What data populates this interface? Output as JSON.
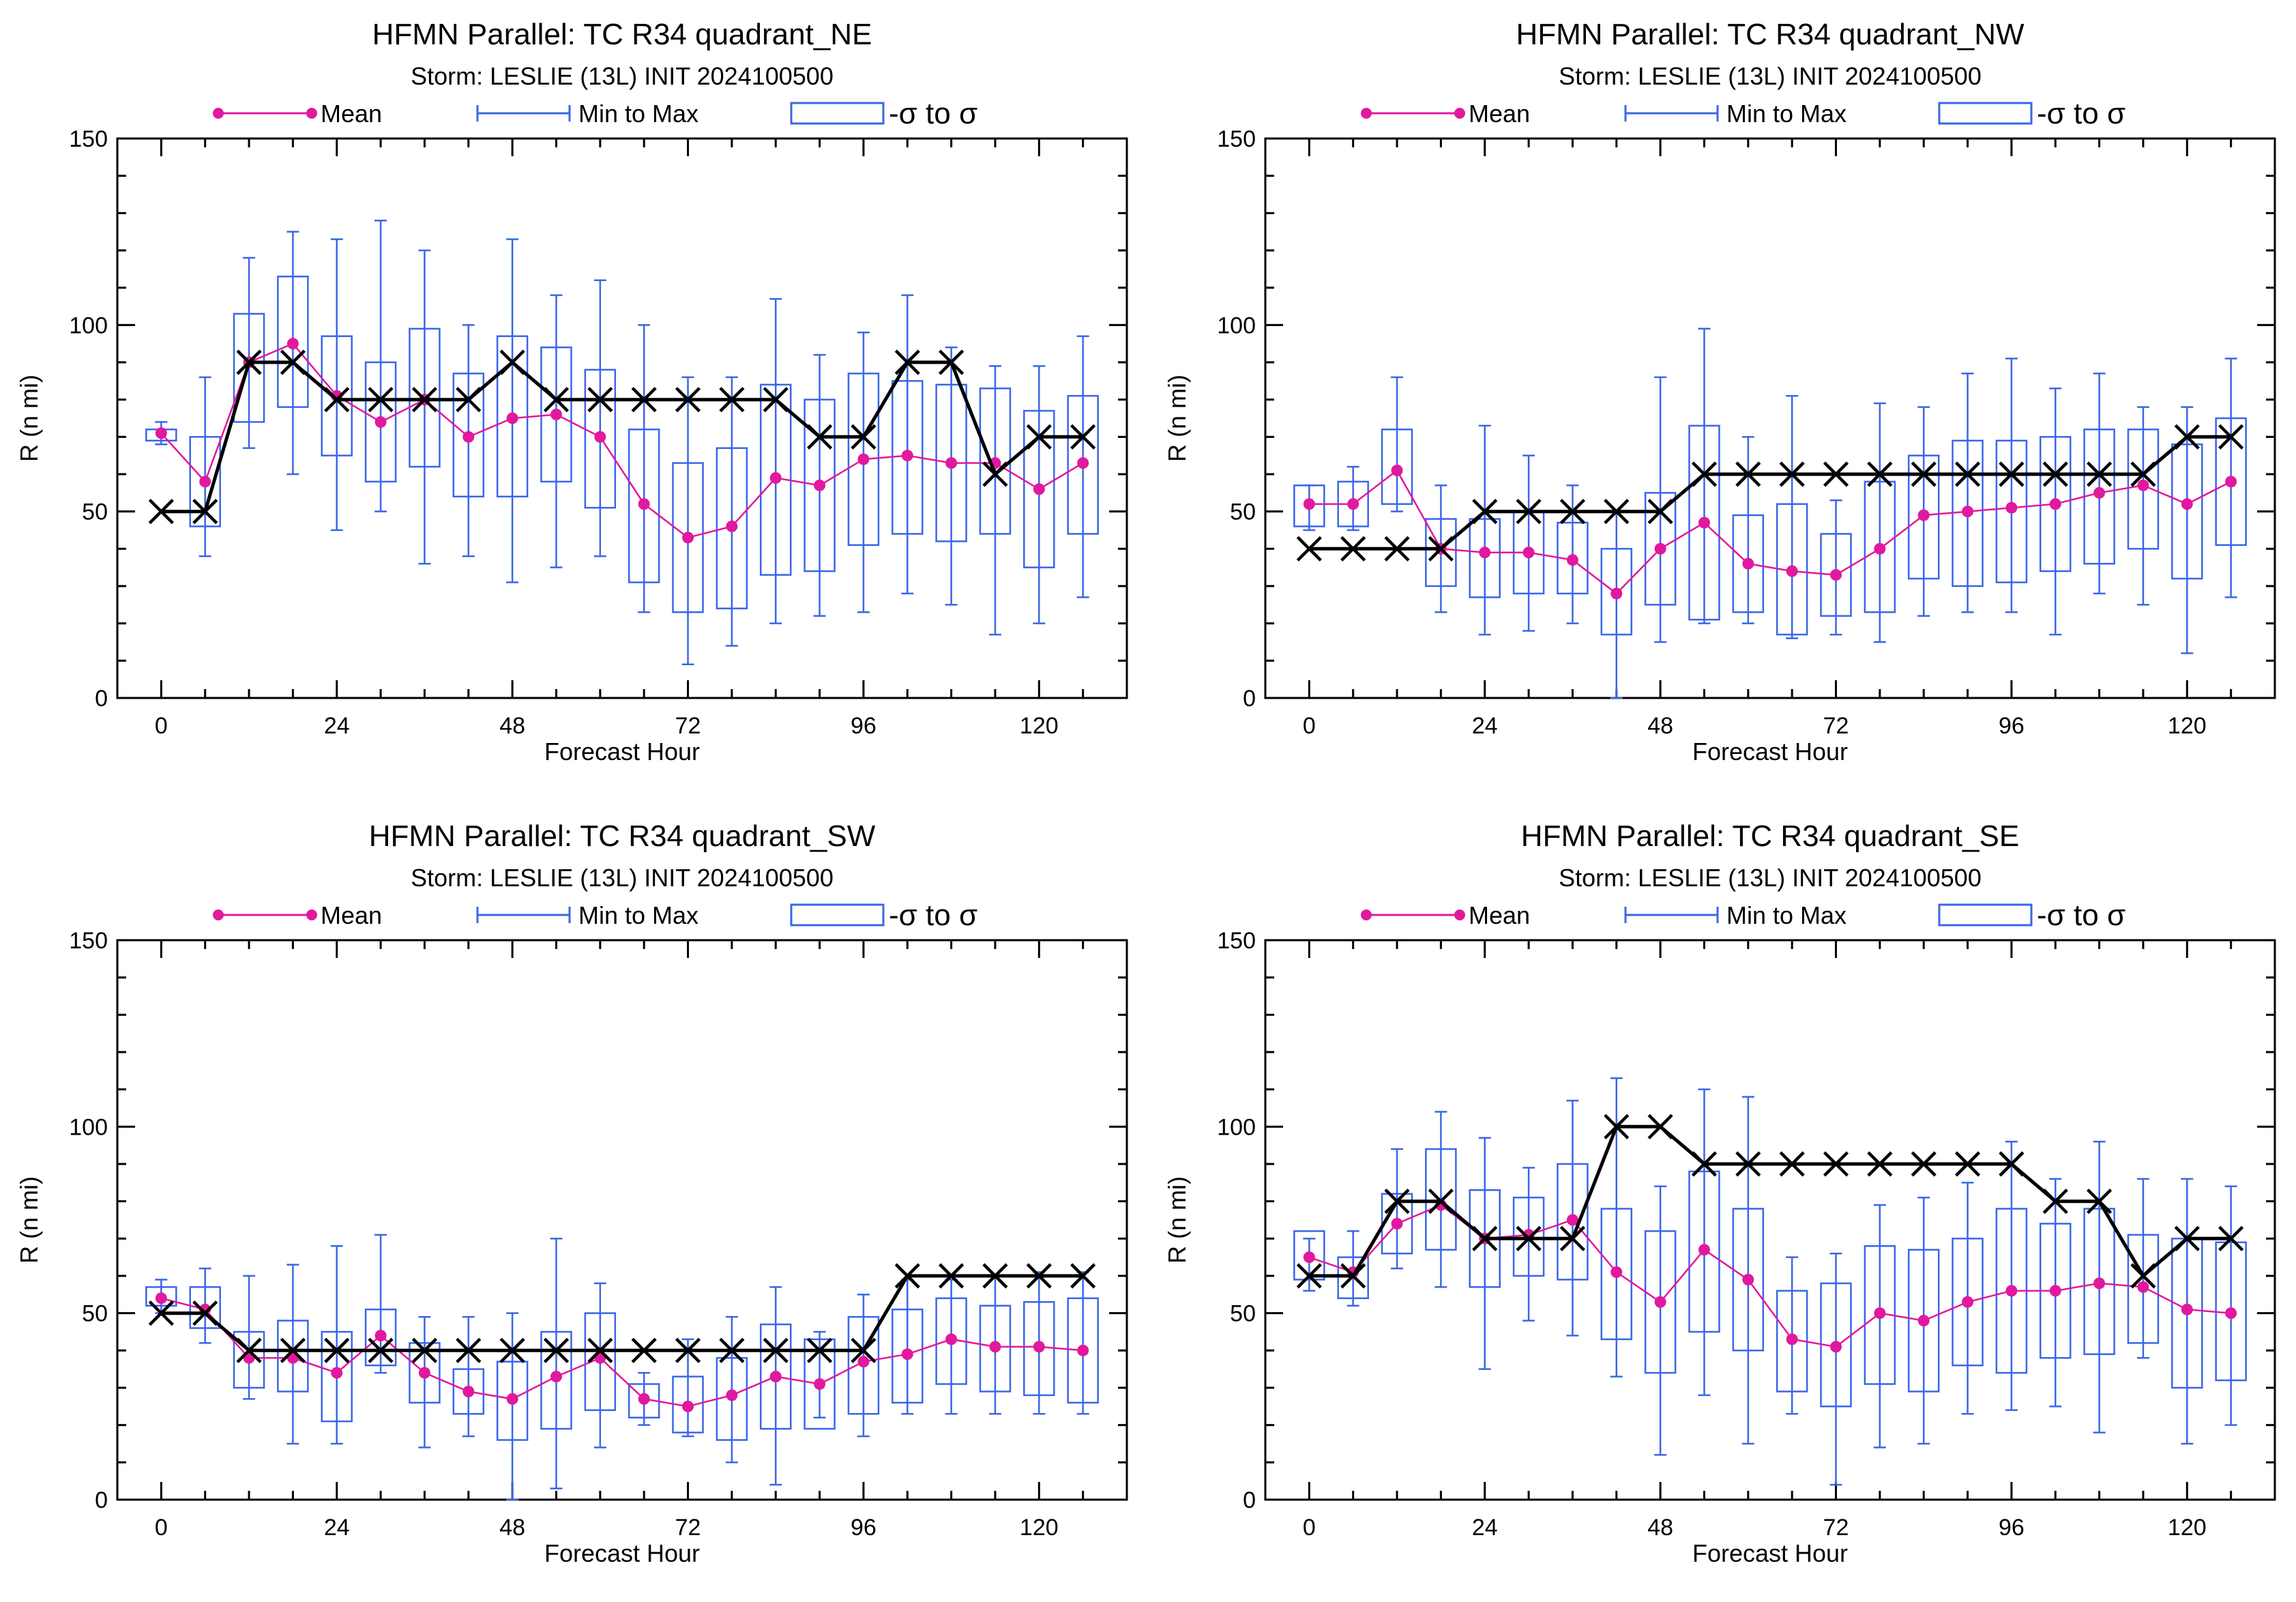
{
  "figure": {
    "legend": {
      "mean_label": "Mean",
      "minmax_label": "Min to Max",
      "sigma_label": "-σ to σ"
    },
    "colors": {
      "mean": "#e0199e",
      "minmax": "#3a66e8",
      "box": "#3a66e8",
      "best_track": "#000000"
    }
  },
  "chart_data": [
    {
      "type": "box",
      "title": "HFMN Parallel: TC  R34 quadrant_NE",
      "subtitle": "Storm: LESLIE (13L) INIT 2024100500",
      "xlabel": "Forecast Hour",
      "ylabel": "R (n mi)",
      "xlim": [
        -6,
        132
      ],
      "ylim": [
        0,
        150
      ],
      "xticks": [
        0,
        24,
        48,
        72,
        96,
        120
      ],
      "yticks": [
        0,
        50,
        100,
        150
      ],
      "x": [
        0,
        6,
        12,
        18,
        24,
        30,
        36,
        42,
        48,
        54,
        60,
        66,
        72,
        78,
        84,
        90,
        96,
        102,
        108,
        114,
        120,
        126
      ],
      "mean": [
        71,
        58,
        90,
        95,
        81,
        74,
        80,
        70,
        75,
        76,
        70,
        52,
        43,
        46,
        59,
        57,
        64,
        65,
        63,
        63,
        56,
        63
      ],
      "min": [
        68,
        38,
        67,
        60,
        45,
        50,
        36,
        38,
        31,
        35,
        38,
        23,
        9,
        14,
        20,
        22,
        23,
        28,
        25,
        17,
        20,
        27
      ],
      "max": [
        74,
        86,
        118,
        125,
        123,
        128,
        120,
        100,
        123,
        108,
        112,
        100,
        86,
        86,
        107,
        92,
        98,
        108,
        94,
        89,
        89,
        97
      ],
      "box_low": [
        69,
        46,
        74,
        78,
        65,
        58,
        62,
        54,
        54,
        58,
        51,
        31,
        23,
        24,
        33,
        34,
        41,
        44,
        42,
        44,
        35,
        44
      ],
      "box_high": [
        72,
        70,
        103,
        113,
        97,
        90,
        99,
        87,
        97,
        94,
        88,
        72,
        63,
        67,
        84,
        80,
        87,
        85,
        84,
        83,
        77,
        81
      ],
      "best_track": [
        50,
        50,
        90,
        90,
        80,
        80,
        80,
        80,
        90,
        80,
        80,
        80,
        80,
        80,
        80,
        70,
        70,
        90,
        90,
        60,
        70,
        70
      ]
    },
    {
      "type": "box",
      "title": "HFMN Parallel: TC  R34 quadrant_NW",
      "subtitle": "Storm: LESLIE (13L) INIT 2024100500",
      "xlabel": "Forecast Hour",
      "ylabel": "R (n mi)",
      "xlim": [
        -6,
        132
      ],
      "ylim": [
        0,
        150
      ],
      "xticks": [
        0,
        24,
        48,
        72,
        96,
        120
      ],
      "yticks": [
        0,
        50,
        100,
        150
      ],
      "x": [
        0,
        6,
        12,
        18,
        24,
        30,
        36,
        42,
        48,
        54,
        60,
        66,
        72,
        78,
        84,
        90,
        96,
        102,
        108,
        114,
        120,
        126
      ],
      "mean": [
        52,
        52,
        61,
        40,
        39,
        39,
        37,
        28,
        40,
        47,
        36,
        34,
        33,
        40,
        49,
        50,
        51,
        52,
        55,
        57,
        52,
        58
      ],
      "min": [
        45,
        45,
        50,
        23,
        17,
        18,
        20,
        0,
        15,
        20,
        20,
        16,
        17,
        15,
        22,
        23,
        23,
        17,
        28,
        25,
        12,
        27
      ],
      "max": [
        57,
        62,
        86,
        57,
        73,
        65,
        57,
        50,
        86,
        99,
        70,
        81,
        53,
        79,
        78,
        87,
        91,
        83,
        87,
        78,
        78,
        91
      ],
      "box_low": [
        46,
        46,
        52,
        30,
        27,
        28,
        28,
        17,
        25,
        21,
        23,
        17,
        22,
        23,
        32,
        30,
        31,
        34,
        36,
        40,
        32,
        41
      ],
      "box_high": [
        57,
        58,
        72,
        48,
        48,
        50,
        47,
        40,
        55,
        73,
        49,
        52,
        44,
        58,
        65,
        69,
        69,
        70,
        72,
        72,
        68,
        75
      ],
      "best_track": [
        40,
        40,
        40,
        40,
        50,
        50,
        50,
        50,
        50,
        60,
        60,
        60,
        60,
        60,
        60,
        60,
        60,
        60,
        60,
        60,
        70,
        70
      ]
    },
    {
      "type": "box",
      "title": "HFMN Parallel: TC  R34 quadrant_SW",
      "subtitle": "Storm: LESLIE (13L) INIT 2024100500",
      "xlabel": "Forecast Hour",
      "ylabel": "R (n mi)",
      "xlim": [
        -6,
        132
      ],
      "ylim": [
        0,
        150
      ],
      "xticks": [
        0,
        24,
        48,
        72,
        96,
        120
      ],
      "yticks": [
        0,
        50,
        100,
        150
      ],
      "x": [
        0,
        6,
        12,
        18,
        24,
        30,
        36,
        42,
        48,
        54,
        60,
        66,
        72,
        78,
        84,
        90,
        96,
        102,
        108,
        114,
        120,
        126
      ],
      "mean": [
        54,
        51,
        38,
        38,
        34,
        44,
        34,
        29,
        27,
        33,
        38,
        27,
        25,
        28,
        33,
        31,
        37,
        39,
        43,
        41,
        41,
        40
      ],
      "min": [
        50,
        42,
        27,
        15,
        15,
        34,
        14,
        17,
        0,
        3,
        14,
        20,
        17,
        10,
        4,
        22,
        17,
        23,
        23,
        23,
        23,
        23
      ],
      "max": [
        59,
        62,
        60,
        63,
        68,
        71,
        49,
        49,
        50,
        70,
        58,
        34,
        43,
        49,
        57,
        45,
        55,
        59,
        59,
        60,
        61,
        61
      ],
      "box_low": [
        52,
        46,
        30,
        29,
        21,
        36,
        26,
        23,
        16,
        19,
        24,
        22,
        18,
        16,
        19,
        19,
        23,
        26,
        31,
        29,
        28,
        26
      ],
      "box_high": [
        57,
        57,
        45,
        48,
        45,
        51,
        42,
        35,
        37,
        45,
        50,
        31,
        33,
        38,
        47,
        43,
        49,
        51,
        54,
        52,
        53,
        54
      ],
      "best_track": [
        50,
        50,
        40,
        40,
        40,
        40,
        40,
        40,
        40,
        40,
        40,
        40,
        40,
        40,
        40,
        40,
        40,
        60,
        60,
        60,
        60,
        60
      ]
    },
    {
      "type": "box",
      "title": "HFMN Parallel: TC  R34 quadrant_SE",
      "subtitle": "Storm: LESLIE (13L) INIT 2024100500",
      "xlabel": "Forecast Hour",
      "ylabel": "R (n mi)",
      "xlim": [
        -6,
        132
      ],
      "ylim": [
        0,
        150
      ],
      "xticks": [
        0,
        24,
        48,
        72,
        96,
        120
      ],
      "yticks": [
        0,
        50,
        100,
        150
      ],
      "x": [
        0,
        6,
        12,
        18,
        24,
        30,
        36,
        42,
        48,
        54,
        60,
        66,
        72,
        78,
        84,
        90,
        96,
        102,
        108,
        114,
        120,
        126
      ],
      "mean": [
        65,
        61,
        74,
        79,
        70,
        71,
        75,
        61,
        53,
        67,
        59,
        43,
        41,
        50,
        48,
        53,
        56,
        56,
        58,
        57,
        51,
        50
      ],
      "min": [
        56,
        52,
        62,
        57,
        35,
        48,
        44,
        33,
        12,
        28,
        15,
        23,
        4,
        14,
        15,
        23,
        24,
        25,
        18,
        38,
        15,
        20
      ],
      "max": [
        70,
        72,
        94,
        104,
        97,
        89,
        107,
        113,
        84,
        110,
        108,
        65,
        66,
        79,
        81,
        85,
        96,
        86,
        96,
        86,
        86,
        84
      ],
      "box_low": [
        59,
        54,
        66,
        67,
        57,
        60,
        59,
        43,
        34,
        45,
        40,
        29,
        25,
        31,
        29,
        36,
        34,
        38,
        39,
        42,
        30,
        32
      ],
      "box_high": [
        72,
        65,
        82,
        94,
        83,
        81,
        90,
        78,
        72,
        88,
        78,
        56,
        58,
        68,
        67,
        70,
        78,
        74,
        78,
        71,
        70,
        69
      ],
      "best_track": [
        60,
        60,
        80,
        80,
        70,
        70,
        70,
        100,
        100,
        90,
        90,
        90,
        90,
        90,
        90,
        90,
        90,
        80,
        80,
        60,
        70,
        70
      ]
    }
  ]
}
